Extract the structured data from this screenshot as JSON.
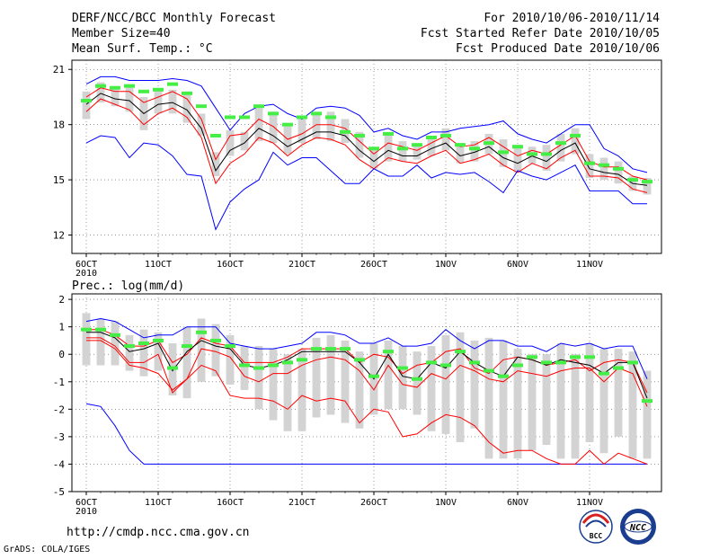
{
  "header": {
    "title": "DERF/NCC/BCC Monthly Forecast",
    "member_size": "Member Size=40",
    "variable": "Mean Surf. Temp.: °C",
    "period": "For 2010/10/06-2010/11/14",
    "start_date": "Fcst Started Refer Date 2010/10/05",
    "produced_date": "Fcst Produced Date 2010/10/06"
  },
  "footer": {
    "url": "http://cmdp.ncc.cma.gov.cn",
    "grads": "GrADS: COLA/IGES",
    "logo_bcc": "BCC",
    "logo_ncc": "NCC"
  },
  "colors": {
    "max_min": "#0000ff",
    "mean": "#000000",
    "percentile": "#ff0000",
    "box": "#d3d3d3",
    "observed": "#44ee44",
    "grid": "#555555"
  },
  "chart_data": [
    {
      "type": "line",
      "title": "Mean Surf. Temp.: °C",
      "ylim": [
        11,
        21.5
      ],
      "yticks": [
        12,
        15,
        18,
        21
      ],
      "xlim": [
        0,
        41
      ],
      "xticks": [
        {
          "day": 1,
          "label": "6OCT",
          "sub": "2010"
        },
        {
          "day": 6,
          "label": "11OCT"
        },
        {
          "day": 11,
          "label": "16OCT"
        },
        {
          "day": 16,
          "label": "21OCT"
        },
        {
          "day": 21,
          "label": "26OCT"
        },
        {
          "day": 26,
          "label": "1NOV"
        },
        {
          "day": 31,
          "label": "6NOV"
        },
        {
          "day": 36,
          "label": "11NOV"
        }
      ],
      "days": [
        1,
        2,
        3,
        4,
        5,
        6,
        7,
        8,
        9,
        10,
        11,
        12,
        13,
        14,
        15,
        16,
        17,
        18,
        19,
        20,
        21,
        22,
        23,
        24,
        25,
        26,
        27,
        28,
        29,
        30,
        31,
        32,
        33,
        34,
        35,
        36,
        37,
        38,
        39,
        40
      ],
      "series": [
        {
          "name": "max",
          "values": [
            20.2,
            20.6,
            20.6,
            20.4,
            20.4,
            20.4,
            20.5,
            20.4,
            20.1,
            18.9,
            17.7,
            18.6,
            19.0,
            19.1,
            18.6,
            18.3,
            18.9,
            19.0,
            18.9,
            18.5,
            17.6,
            17.8,
            17.4,
            17.2,
            17.6,
            17.6,
            17.8,
            17.9,
            18.0,
            18.2,
            17.5,
            17.2,
            17.0,
            17.5,
            18.0,
            18.0,
            16.7,
            16.3,
            15.6,
            15.4
          ]
        },
        {
          "name": "p_upper",
          "values": [
            19.5,
            20.0,
            19.8,
            19.8,
            19.2,
            19.5,
            19.8,
            19.4,
            18.3,
            16.1,
            17.4,
            17.5,
            18.3,
            17.9,
            17.2,
            17.5,
            18.0,
            18.0,
            17.8,
            17.1,
            16.4,
            17.0,
            16.8,
            16.6,
            17.0,
            17.4,
            16.8,
            16.9,
            17.3,
            16.8,
            16.3,
            16.6,
            16.4,
            16.9,
            17.4,
            16.0,
            15.7,
            15.7,
            15.2,
            15.0
          ]
        },
        {
          "name": "mean",
          "values": [
            19.1,
            19.7,
            19.4,
            19.3,
            18.6,
            19.1,
            19.2,
            18.8,
            17.8,
            15.5,
            16.6,
            17.0,
            17.8,
            17.4,
            16.8,
            17.2,
            17.6,
            17.6,
            17.4,
            16.6,
            16.0,
            16.6,
            16.3,
            16.3,
            16.7,
            17.0,
            16.3,
            16.5,
            16.8,
            16.2,
            15.9,
            16.3,
            16.0,
            16.6,
            17.0,
            15.6,
            15.4,
            15.3,
            14.8,
            14.7
          ]
        },
        {
          "name": "p_lower",
          "values": [
            18.7,
            19.4,
            19.1,
            18.8,
            18.0,
            18.6,
            18.9,
            18.4,
            17.3,
            14.8,
            15.9,
            16.4,
            17.3,
            17.0,
            16.3,
            16.9,
            17.3,
            17.2,
            16.9,
            16.1,
            15.6,
            16.2,
            16.0,
            15.9,
            16.3,
            16.6,
            15.9,
            16.1,
            16.4,
            15.8,
            15.4,
            15.9,
            15.6,
            16.2,
            16.6,
            15.2,
            15.2,
            15.1,
            14.5,
            14.3
          ]
        },
        {
          "name": "min",
          "values": [
            17.0,
            17.4,
            17.3,
            16.2,
            17.0,
            16.9,
            16.3,
            15.3,
            15.2,
            12.3,
            13.8,
            14.5,
            15.0,
            16.5,
            15.8,
            16.2,
            16.2,
            15.5,
            14.8,
            14.8,
            15.6,
            15.2,
            15.2,
            15.8,
            15.1,
            15.4,
            15.3,
            15.4,
            14.9,
            14.3,
            15.5,
            15.2,
            15.0,
            15.4,
            15.8,
            14.4,
            14.4,
            14.4,
            13.7,
            13.7
          ]
        }
      ],
      "box_low": [
        18.3,
        19.2,
        19.0,
        18.7,
        17.7,
        18.6,
        18.6,
        18.1,
        17.4,
        15.2,
        16.3,
        16.6,
        17.1,
        17.0,
        16.4,
        17.0,
        17.2,
        17.1,
        17.0,
        16.2,
        15.6,
        16.0,
        16.0,
        16.1,
        16.3,
        16.6,
        15.9,
        16.0,
        16.4,
        15.7,
        15.4,
        15.9,
        15.5,
        16.0,
        16.4,
        15.1,
        15.0,
        14.8,
        14.4,
        14.2
      ],
      "box_high": [
        19.8,
        20.3,
        20.0,
        20.0,
        19.5,
        19.9,
        19.9,
        19.6,
        18.6,
        16.5,
        17.7,
        17.6,
        18.9,
        18.7,
        17.9,
        18.3,
        18.6,
        18.7,
        18.3,
        17.6,
        16.7,
        17.5,
        17.1,
        16.9,
        17.4,
        17.8,
        17.0,
        17.1,
        17.5,
        17.2,
        16.9,
        16.8,
        16.9,
        17.5,
        17.8,
        16.4,
        16.2,
        16.0,
        15.2,
        15.1
      ],
      "observed": [
        19.3,
        20.1,
        20.0,
        20.1,
        19.8,
        19.9,
        20.2,
        19.7,
        19.0,
        17.4,
        18.4,
        18.4,
        19.0,
        18.6,
        18.0,
        18.4,
        18.6,
        18.4,
        17.6,
        17.4,
        16.7,
        17.5,
        16.7,
        16.9,
        17.3,
        17.4,
        16.9,
        16.7,
        17.0,
        16.5,
        16.8,
        16.4,
        16.4,
        17.0,
        17.4,
        15.9,
        15.8,
        15.6,
        15.0,
        14.9
      ]
    },
    {
      "type": "line",
      "title": "Prec.: log(mm/d)",
      "ylim": [
        -5,
        2.2
      ],
      "yticks": [
        -5,
        -4,
        -3,
        -2,
        -1,
        0,
        1,
        2
      ],
      "xlim": [
        0,
        41
      ],
      "xticks": [
        {
          "day": 1,
          "label": "6OCT",
          "sub": "2010"
        },
        {
          "day": 6,
          "label": "11OCT"
        },
        {
          "day": 11,
          "label": "16OCT"
        },
        {
          "day": 16,
          "label": "21OCT"
        },
        {
          "day": 21,
          "label": "26OCT"
        },
        {
          "day": 26,
          "label": "1NOV"
        },
        {
          "day": 31,
          "label": "6NOV"
        },
        {
          "day": 36,
          "label": "11NOV"
        }
      ],
      "days": [
        1,
        2,
        3,
        4,
        5,
        6,
        7,
        8,
        9,
        10,
        11,
        12,
        13,
        14,
        15,
        16,
        17,
        18,
        19,
        20,
        21,
        22,
        23,
        24,
        25,
        26,
        27,
        28,
        29,
        30,
        31,
        32,
        33,
        34,
        35,
        36,
        37,
        38,
        39,
        40
      ],
      "series": [
        {
          "name": "max",
          "values": [
            1.2,
            1.3,
            1.2,
            0.9,
            0.6,
            0.7,
            0.7,
            1.0,
            1.0,
            1.0,
            0.4,
            0.3,
            0.2,
            0.2,
            0.3,
            0.4,
            0.8,
            0.8,
            0.7,
            0.4,
            0.4,
            0.6,
            0.3,
            0.3,
            0.4,
            0.9,
            0.5,
            0.2,
            0.5,
            0.5,
            0.3,
            0.3,
            0.1,
            0.4,
            0.3,
            0.4,
            0.2,
            0.3,
            0.3,
            -0.9
          ]
        },
        {
          "name": "p_upper",
          "values": [
            0.9,
            0.9,
            0.7,
            0.3,
            0.3,
            0.5,
            -0.3,
            0.0,
            0.6,
            0.4,
            0.3,
            -0.3,
            -0.3,
            -0.3,
            -0.1,
            0.2,
            0.2,
            0.2,
            0.2,
            -0.3,
            0.0,
            -0.1,
            -0.7,
            -0.4,
            -0.3,
            0.1,
            0.2,
            -0.5,
            -0.7,
            -0.2,
            -0.1,
            -0.2,
            -0.4,
            -0.3,
            -0.2,
            -0.6,
            -0.3,
            -0.2,
            -0.3,
            -1.4
          ]
        },
        {
          "name": "mean",
          "values": [
            0.8,
            0.8,
            0.6,
            0.1,
            0.2,
            0.4,
            -0.6,
            0.1,
            0.5,
            0.3,
            0.2,
            -0.4,
            -0.5,
            -0.4,
            -0.2,
            0.1,
            0.1,
            0.1,
            0.1,
            -0.3,
            -0.9,
            0.0,
            -0.8,
            -0.9,
            -0.3,
            -0.5,
            0.1,
            -0.3,
            -0.6,
            -0.8,
            -0.1,
            -0.2,
            -0.4,
            -0.2,
            -0.3,
            -0.4,
            -0.7,
            -0.3,
            -0.3,
            -1.6
          ]
        },
        {
          "name": "p_lower",
          "values": [
            0.6,
            0.6,
            0.3,
            -0.3,
            -0.3,
            0.0,
            -1.4,
            -0.9,
            0.2,
            0.1,
            -0.1,
            -0.8,
            -1.0,
            -0.7,
            -0.7,
            -0.4,
            -0.2,
            -0.1,
            -0.2,
            -0.6,
            -1.3,
            -0.4,
            -1.1,
            -1.2,
            -0.7,
            -0.9,
            -0.4,
            -0.6,
            -0.9,
            -1.0,
            -0.6,
            -0.7,
            -0.8,
            -0.6,
            -0.5,
            -0.5,
            -1.0,
            -0.5,
            -0.7,
            -1.9
          ]
        },
        {
          "name": "min",
          "values": [
            -1.8,
            -1.9,
            -2.6,
            -3.5,
            -4.0,
            -4.0,
            -4.0,
            -4.0,
            -4.0,
            -4.0,
            -4.0,
            -4.0,
            -4.0,
            -4.0,
            -4.0,
            -4.0,
            -4.0,
            -4.0,
            -4.0,
            -4.0,
            -4.0,
            -4.0,
            -4.0,
            -4.0,
            -4.0,
            -4.0,
            -4.0,
            -4.0,
            -4.0,
            -4.0,
            -4.0,
            -4.0,
            -4.0,
            -4.0,
            -4.0,
            -4.0,
            -4.0,
            -4.0,
            -4.0,
            -4.0
          ]
        },
        {
          "name": "p_lowest",
          "values": [
            0.5,
            0.5,
            0.2,
            -0.4,
            -0.5,
            -0.7,
            -1.3,
            -0.9,
            -0.4,
            -0.6,
            -1.5,
            -1.6,
            -1.6,
            -1.7,
            -2.0,
            -1.5,
            -1.7,
            -1.6,
            -1.7,
            -2.5,
            -2.0,
            -2.1,
            -3.0,
            -2.9,
            -2.5,
            -2.2,
            -2.3,
            -2.6,
            -3.2,
            -3.6,
            -3.5,
            -3.5,
            -3.8,
            -4.0,
            -4.0,
            -3.5,
            -4.0,
            -3.6,
            -3.8,
            -4.0
          ]
        }
      ],
      "box_low": [
        -0.4,
        -0.4,
        -0.4,
        -0.6,
        -0.8,
        -0.6,
        -1.5,
        -1.6,
        -1.0,
        -0.8,
        -1.1,
        -1.3,
        -2.0,
        -2.4,
        -2.8,
        -2.8,
        -2.3,
        -2.2,
        -2.5,
        -2.7,
        -2.2,
        -2.0,
        -2.0,
        -2.2,
        -2.8,
        -2.9,
        -3.2,
        -2.7,
        -3.8,
        -3.8,
        -3.8,
        -3.5,
        -3.3,
        -3.8,
        -3.8,
        -3.2,
        -3.6,
        -3.0,
        -3.8,
        -3.8
      ],
      "box_high": [
        1.5,
        1.3,
        1.2,
        0.7,
        0.9,
        0.8,
        0.4,
        1.0,
        1.3,
        1.1,
        0.7,
        0.3,
        0.3,
        0.2,
        0.0,
        0.2,
        0.6,
        0.7,
        0.5,
        0.1,
        0.4,
        0.5,
        0.3,
        0.1,
        0.3,
        0.7,
        0.8,
        0.5,
        0.6,
        0.5,
        0.2,
        0.0,
        0.0,
        0.4,
        0.0,
        0.4,
        0.2,
        0.2,
        0.1,
        -0.6
      ],
      "observed": [
        0.9,
        0.9,
        0.7,
        0.3,
        0.4,
        0.5,
        -0.5,
        0.3,
        0.8,
        0.5,
        0.3,
        -0.4,
        -0.5,
        -0.4,
        -0.3,
        -0.2,
        0.2,
        0.2,
        0.2,
        -0.2,
        -0.8,
        0.1,
        -0.5,
        -0.9,
        -0.3,
        -0.4,
        0.1,
        -0.3,
        -0.6,
        -0.8,
        -0.4,
        -0.1,
        -0.3,
        -0.3,
        -0.1,
        -0.1,
        -0.7,
        -0.5,
        -0.3,
        -1.7
      ]
    }
  ]
}
